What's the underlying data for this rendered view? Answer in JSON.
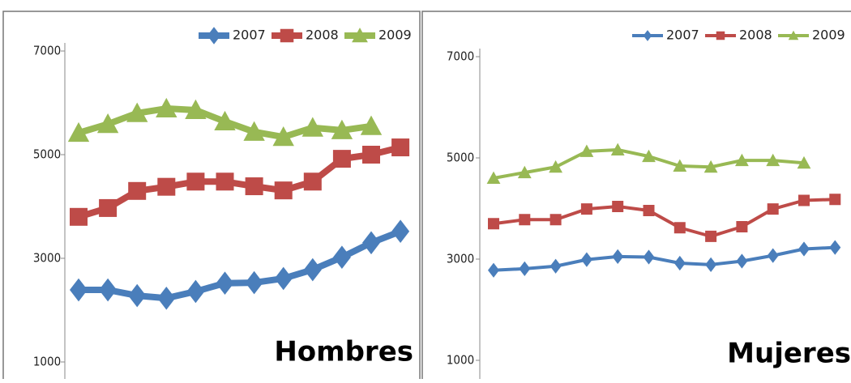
{
  "chart_data": [
    {
      "type": "line",
      "annotation": "Hombres",
      "categories": [
        null,
        null,
        null,
        null,
        null,
        null,
        null,
        null,
        null,
        null,
        null,
        null
      ],
      "ylim": [
        1000,
        7000
      ],
      "yticks": [
        1000,
        3000,
        5000,
        7000
      ],
      "legend": "top-right",
      "line_width": 8,
      "marker_size": 11,
      "series": [
        {
          "name": "2007",
          "color": "#4a7ebb",
          "marker": "diamond",
          "values": [
            2390,
            2390,
            2280,
            2230,
            2360,
            2520,
            2530,
            2610,
            2780,
            3020,
            3300,
            3520
          ]
        },
        {
          "name": "2008",
          "color": "#be4b48",
          "marker": "square",
          "values": [
            3800,
            3970,
            4300,
            4380,
            4480,
            4480,
            4390,
            4310,
            4480,
            4920,
            5000,
            5140
          ]
        },
        {
          "name": "2009",
          "color": "#98b954",
          "marker": "triangle",
          "values": [
            5420,
            5590,
            5800,
            5890,
            5860,
            5640,
            5440,
            5340,
            5520,
            5470,
            5550,
            null
          ]
        }
      ]
    },
    {
      "type": "line",
      "annotation": "Mujeres",
      "categories": [
        null,
        null,
        null,
        null,
        null,
        null,
        null,
        null,
        null,
        null,
        null,
        null
      ],
      "ylim": [
        1000,
        7000
      ],
      "yticks": [
        1000,
        3000,
        5000,
        7000
      ],
      "legend": "top-right",
      "line_width": 4,
      "marker_size": 7,
      "series": [
        {
          "name": "2007",
          "color": "#4a7ebb",
          "marker": "diamond",
          "values": [
            2780,
            2810,
            2860,
            2990,
            3050,
            3040,
            2920,
            2890,
            2960,
            3070,
            3200,
            3230
          ]
        },
        {
          "name": "2008",
          "color": "#be4b48",
          "marker": "square",
          "values": [
            3700,
            3780,
            3780,
            3990,
            4040,
            3960,
            3620,
            3450,
            3640,
            3990,
            4160,
            4180
          ]
        },
        {
          "name": "2009",
          "color": "#98b954",
          "marker": "triangle",
          "values": [
            4600,
            4710,
            4820,
            5130,
            5160,
            5030,
            4840,
            4820,
            4950,
            4950,
            4900,
            null
          ]
        }
      ]
    }
  ]
}
